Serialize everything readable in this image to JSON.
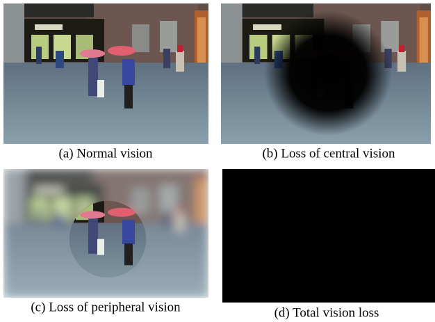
{
  "figure": {
    "panels": [
      {
        "caption": "(a) Normal vision"
      },
      {
        "caption": "(b) Loss of central vision"
      },
      {
        "caption": "(c) Loss of peripheral vision"
      },
      {
        "caption": "(d) Total vision loss"
      }
    ]
  }
}
